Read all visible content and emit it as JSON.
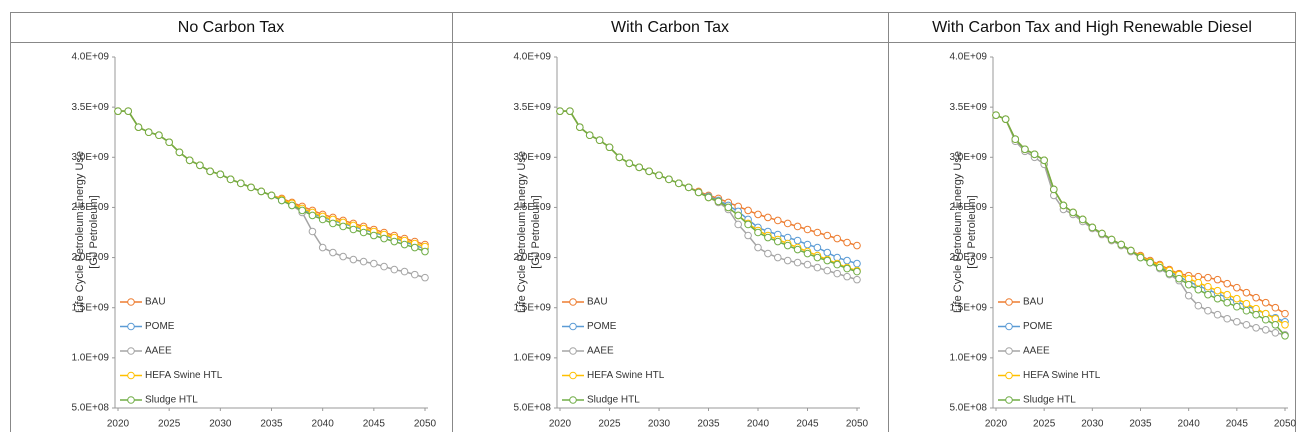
{
  "chart_data": [
    {
      "type": "line",
      "title": "No Carbon Tax",
      "ylabel": [
        "Life Cycle Petroleum Energy Use",
        "[GJ Petroleum]"
      ],
      "x": [
        2020,
        2021,
        2022,
        2023,
        2024,
        2025,
        2026,
        2027,
        2028,
        2029,
        2030,
        2031,
        2032,
        2033,
        2034,
        2035,
        2036,
        2037,
        2038,
        2039,
        2040,
        2041,
        2042,
        2043,
        2044,
        2045,
        2046,
        2047,
        2048,
        2049,
        2050
      ],
      "xlim": [
        2020,
        2050
      ],
      "xticks": [
        2020,
        2025,
        2030,
        2035,
        2040,
        2045,
        2050
      ],
      "ylim": [
        500000000.0,
        4000000000.0
      ],
      "yticks": [
        {
          "value": 500000000.0,
          "label": "5.0E+08"
        },
        {
          "value": 1000000000.0,
          "label": "1.0E+09"
        },
        {
          "value": 1500000000.0,
          "label": "1.5E+09"
        },
        {
          "value": 2000000000.0,
          "label": "2.0E+09"
        },
        {
          "value": 2500000000.0,
          "label": "2.5E+09"
        },
        {
          "value": 3000000000.0,
          "label": "3.0E+09"
        },
        {
          "value": 3500000000.0,
          "label": "3.5E+09"
        },
        {
          "value": 4000000000.0,
          "label": "4.0E+09"
        }
      ],
      "series": [
        {
          "name": "BAU",
          "color": "#ed7d31",
          "values": [
            3460000000.0,
            3460000000.0,
            3300000000.0,
            3250000000.0,
            3220000000.0,
            3150000000.0,
            3050000000.0,
            2970000000.0,
            2920000000.0,
            2860000000.0,
            2830000000.0,
            2780000000.0,
            2740000000.0,
            2700000000.0,
            2660000000.0,
            2620000000.0,
            2590000000.0,
            2550000000.0,
            2510000000.0,
            2470000000.0,
            2430000000.0,
            2400000000.0,
            2370000000.0,
            2340000000.0,
            2310000000.0,
            2280000000.0,
            2250000000.0,
            2220000000.0,
            2190000000.0,
            2160000000.0,
            2130000000.0
          ]
        },
        {
          "name": "POME",
          "color": "#5b9bd5",
          "values": [
            3460000000.0,
            3460000000.0,
            3300000000.0,
            3250000000.0,
            3220000000.0,
            3150000000.0,
            3050000000.0,
            2970000000.0,
            2920000000.0,
            2860000000.0,
            2830000000.0,
            2780000000.0,
            2740000000.0,
            2700000000.0,
            2660000000.0,
            2620000000.0,
            2570000000.0,
            2530000000.0,
            2480000000.0,
            2440000000.0,
            2400000000.0,
            2370000000.0,
            2340000000.0,
            2310000000.0,
            2280000000.0,
            2250000000.0,
            2220000000.0,
            2190000000.0,
            2160000000.0,
            2120000000.0,
            2090000000.0
          ]
        },
        {
          "name": "AAEE",
          "color": "#a5a5a5",
          "values": [
            3460000000.0,
            3460000000.0,
            3300000000.0,
            3250000000.0,
            3220000000.0,
            3150000000.0,
            3050000000.0,
            2970000000.0,
            2920000000.0,
            2860000000.0,
            2830000000.0,
            2780000000.0,
            2740000000.0,
            2700000000.0,
            2660000000.0,
            2620000000.0,
            2570000000.0,
            2520000000.0,
            2450000000.0,
            2260000000.0,
            2100000000.0,
            2050000000.0,
            2010000000.0,
            1980000000.0,
            1960000000.0,
            1940000000.0,
            1910000000.0,
            1880000000.0,
            1860000000.0,
            1830000000.0,
            1800000000.0
          ]
        },
        {
          "name": "HEFA Swine HTL",
          "color": "#ffc000",
          "values": [
            3460000000.0,
            3460000000.0,
            3300000000.0,
            3250000000.0,
            3220000000.0,
            3150000000.0,
            3050000000.0,
            2970000000.0,
            2920000000.0,
            2860000000.0,
            2830000000.0,
            2780000000.0,
            2740000000.0,
            2700000000.0,
            2660000000.0,
            2620000000.0,
            2580000000.0,
            2540000000.0,
            2490000000.0,
            2450000000.0,
            2410000000.0,
            2380000000.0,
            2350000000.0,
            2320000000.0,
            2290000000.0,
            2260000000.0,
            2230000000.0,
            2200000000.0,
            2170000000.0,
            2140000000.0,
            2110000000.0
          ]
        },
        {
          "name": "Sludge HTL",
          "color": "#70ad47",
          "values": [
            3460000000.0,
            3460000000.0,
            3300000000.0,
            3250000000.0,
            3220000000.0,
            3150000000.0,
            3050000000.0,
            2970000000.0,
            2920000000.0,
            2860000000.0,
            2830000000.0,
            2780000000.0,
            2740000000.0,
            2700000000.0,
            2660000000.0,
            2620000000.0,
            2570000000.0,
            2520000000.0,
            2470000000.0,
            2420000000.0,
            2380000000.0,
            2340000000.0,
            2310000000.0,
            2280000000.0,
            2250000000.0,
            2220000000.0,
            2190000000.0,
            2160000000.0,
            2130000000.0,
            2100000000.0,
            2060000000.0
          ]
        }
      ]
    },
    {
      "type": "line",
      "title": "With Carbon Tax",
      "ylabel": [
        "Life Cycle Petroleum Energy Use",
        "[GJ Petroleum]"
      ],
      "x": [
        2020,
        2021,
        2022,
        2023,
        2024,
        2025,
        2026,
        2027,
        2028,
        2029,
        2030,
        2031,
        2032,
        2033,
        2034,
        2035,
        2036,
        2037,
        2038,
        2039,
        2040,
        2041,
        2042,
        2043,
        2044,
        2045,
        2046,
        2047,
        2048,
        2049,
        2050
      ],
      "xlim": [
        2020,
        2050
      ],
      "xticks": [
        2020,
        2025,
        2030,
        2035,
        2040,
        2045,
        2050
      ],
      "ylim": [
        500000000.0,
        4000000000.0
      ],
      "yticks": [
        {
          "value": 500000000.0,
          "label": "5.0E+08"
        },
        {
          "value": 1000000000.0,
          "label": "1.0E+09"
        },
        {
          "value": 1500000000.0,
          "label": "1.5E+09"
        },
        {
          "value": 2000000000.0,
          "label": "2.0E+09"
        },
        {
          "value": 2500000000.0,
          "label": "2.5E+09"
        },
        {
          "value": 3000000000.0,
          "label": "3.0E+09"
        },
        {
          "value": 3500000000.0,
          "label": "3.5E+09"
        },
        {
          "value": 4000000000.0,
          "label": "4.0E+09"
        }
      ],
      "series": [
        {
          "name": "BAU",
          "color": "#ed7d31",
          "values": [
            3460000000.0,
            3460000000.0,
            3300000000.0,
            3220000000.0,
            3170000000.0,
            3100000000.0,
            3000000000.0,
            2940000000.0,
            2900000000.0,
            2860000000.0,
            2820000000.0,
            2780000000.0,
            2740000000.0,
            2700000000.0,
            2660000000.0,
            2620000000.0,
            2590000000.0,
            2550000000.0,
            2510000000.0,
            2470000000.0,
            2430000000.0,
            2400000000.0,
            2370000000.0,
            2340000000.0,
            2310000000.0,
            2280000000.0,
            2250000000.0,
            2220000000.0,
            2190000000.0,
            2150000000.0,
            2120000000.0
          ]
        },
        {
          "name": "POME",
          "color": "#5b9bd5",
          "values": [
            3460000000.0,
            3460000000.0,
            3300000000.0,
            3220000000.0,
            3170000000.0,
            3100000000.0,
            3000000000.0,
            2940000000.0,
            2900000000.0,
            2860000000.0,
            2820000000.0,
            2780000000.0,
            2740000000.0,
            2700000000.0,
            2650000000.0,
            2610000000.0,
            2570000000.0,
            2520000000.0,
            2460000000.0,
            2380000000.0,
            2300000000.0,
            2260000000.0,
            2230000000.0,
            2200000000.0,
            2170000000.0,
            2130000000.0,
            2100000000.0,
            2050000000.0,
            2000000000.0,
            1970000000.0,
            1940000000.0
          ]
        },
        {
          "name": "AAEE",
          "color": "#a5a5a5",
          "values": [
            3460000000.0,
            3460000000.0,
            3300000000.0,
            3220000000.0,
            3170000000.0,
            3100000000.0,
            3000000000.0,
            2940000000.0,
            2900000000.0,
            2860000000.0,
            2820000000.0,
            2780000000.0,
            2740000000.0,
            2700000000.0,
            2650000000.0,
            2600000000.0,
            2550000000.0,
            2480000000.0,
            2330000000.0,
            2220000000.0,
            2100000000.0,
            2040000000.0,
            2000000000.0,
            1970000000.0,
            1950000000.0,
            1930000000.0,
            1900000000.0,
            1870000000.0,
            1840000000.0,
            1810000000.0,
            1780000000.0
          ]
        },
        {
          "name": "HEFA Swine HTL",
          "color": "#ffc000",
          "values": [
            3460000000.0,
            3460000000.0,
            3300000000.0,
            3220000000.0,
            3170000000.0,
            3100000000.0,
            3000000000.0,
            2940000000.0,
            2900000000.0,
            2860000000.0,
            2820000000.0,
            2780000000.0,
            2740000000.0,
            2700000000.0,
            2650000000.0,
            2600000000.0,
            2560000000.0,
            2500000000.0,
            2420000000.0,
            2340000000.0,
            2270000000.0,
            2220000000.0,
            2180000000.0,
            2140000000.0,
            2100000000.0,
            2060000000.0,
            2020000000.0,
            1980000000.0,
            1940000000.0,
            1900000000.0,
            1870000000.0
          ]
        },
        {
          "name": "Sludge HTL",
          "color": "#70ad47",
          "values": [
            3460000000.0,
            3460000000.0,
            3300000000.0,
            3220000000.0,
            3170000000.0,
            3100000000.0,
            3000000000.0,
            2940000000.0,
            2900000000.0,
            2860000000.0,
            2820000000.0,
            2780000000.0,
            2740000000.0,
            2700000000.0,
            2650000000.0,
            2600000000.0,
            2560000000.0,
            2500000000.0,
            2420000000.0,
            2330000000.0,
            2250000000.0,
            2200000000.0,
            2160000000.0,
            2120000000.0,
            2080000000.0,
            2040000000.0,
            2000000000.0,
            1970000000.0,
            1930000000.0,
            1890000000.0,
            1860000000.0
          ]
        }
      ]
    },
    {
      "type": "line",
      "title": "With Carbon Tax and High Renewable Diesel",
      "ylabel": [
        "Life Cycle Petroleum Energy Use",
        "[GJ Petroleum]"
      ],
      "x": [
        2020,
        2021,
        2022,
        2023,
        2024,
        2025,
        2026,
        2027,
        2028,
        2029,
        2030,
        2031,
        2032,
        2033,
        2034,
        2035,
        2036,
        2037,
        2038,
        2039,
        2040,
        2041,
        2042,
        2043,
        2044,
        2045,
        2046,
        2047,
        2048,
        2049,
        2050
      ],
      "xlim": [
        2020,
        2050
      ],
      "xticks": [
        2020,
        2025,
        2030,
        2035,
        2040,
        2045,
        2050
      ],
      "ylim": [
        500000000.0,
        4000000000.0
      ],
      "yticks": [
        {
          "value": 500000000.0,
          "label": "5.0E+08"
        },
        {
          "value": 1000000000.0,
          "label": "1.0E+09"
        },
        {
          "value": 1500000000.0,
          "label": "1.5E+09"
        },
        {
          "value": 2000000000.0,
          "label": "2.0E+09"
        },
        {
          "value": 2500000000.0,
          "label": "2.5E+09"
        },
        {
          "value": 3000000000.0,
          "label": "3.0E+09"
        },
        {
          "value": 3500000000.0,
          "label": "3.5E+09"
        },
        {
          "value": 4000000000.0,
          "label": "4.0E+09"
        }
      ],
      "series": [
        {
          "name": "BAU",
          "color": "#ed7d31",
          "values": [
            3420000000.0,
            3380000000.0,
            3180000000.0,
            3080000000.0,
            3030000000.0,
            2970000000.0,
            2680000000.0,
            2520000000.0,
            2450000000.0,
            2380000000.0,
            2300000000.0,
            2240000000.0,
            2180000000.0,
            2130000000.0,
            2070000000.0,
            2020000000.0,
            1970000000.0,
            1930000000.0,
            1880000000.0,
            1840000000.0,
            1820000000.0,
            1810000000.0,
            1800000000.0,
            1780000000.0,
            1740000000.0,
            1700000000.0,
            1650000000.0,
            1600000000.0,
            1550000000.0,
            1500000000.0,
            1440000000.0
          ]
        },
        {
          "name": "POME",
          "color": "#5b9bd5",
          "values": [
            3420000000.0,
            3380000000.0,
            3180000000.0,
            3080000000.0,
            3030000000.0,
            2970000000.0,
            2680000000.0,
            2520000000.0,
            2450000000.0,
            2380000000.0,
            2300000000.0,
            2240000000.0,
            2180000000.0,
            2130000000.0,
            2070000000.0,
            2010000000.0,
            1960000000.0,
            1910000000.0,
            1860000000.0,
            1810000000.0,
            1760000000.0,
            1720000000.0,
            1680000000.0,
            1640000000.0,
            1600000000.0,
            1560000000.0,
            1520000000.0,
            1480000000.0,
            1440000000.0,
            1400000000.0,
            1360000000.0
          ]
        },
        {
          "name": "AAEE",
          "color": "#a5a5a5",
          "values": [
            3420000000.0,
            3380000000.0,
            3160000000.0,
            3060000000.0,
            3000000000.0,
            2930000000.0,
            2620000000.0,
            2480000000.0,
            2430000000.0,
            2360000000.0,
            2290000000.0,
            2230000000.0,
            2170000000.0,
            2120000000.0,
            2060000000.0,
            2000000000.0,
            1950000000.0,
            1890000000.0,
            1830000000.0,
            1770000000.0,
            1620000000.0,
            1520000000.0,
            1470000000.0,
            1430000000.0,
            1390000000.0,
            1360000000.0,
            1330000000.0,
            1300000000.0,
            1280000000.0,
            1250000000.0,
            1230000000.0
          ]
        },
        {
          "name": "HEFA Swine HTL",
          "color": "#ffc000",
          "values": [
            3420000000.0,
            3380000000.0,
            3180000000.0,
            3080000000.0,
            3030000000.0,
            2970000000.0,
            2680000000.0,
            2520000000.0,
            2450000000.0,
            2380000000.0,
            2300000000.0,
            2240000000.0,
            2180000000.0,
            2130000000.0,
            2070000000.0,
            2010000000.0,
            1960000000.0,
            1920000000.0,
            1870000000.0,
            1830000000.0,
            1790000000.0,
            1750000000.0,
            1710000000.0,
            1670000000.0,
            1630000000.0,
            1590000000.0,
            1540000000.0,
            1490000000.0,
            1440000000.0,
            1390000000.0,
            1330000000.0
          ]
        },
        {
          "name": "Sludge HTL",
          "color": "#70ad47",
          "values": [
            3420000000.0,
            3380000000.0,
            3180000000.0,
            3080000000.0,
            3030000000.0,
            2970000000.0,
            2680000000.0,
            2520000000.0,
            2450000000.0,
            2380000000.0,
            2300000000.0,
            2240000000.0,
            2180000000.0,
            2130000000.0,
            2070000000.0,
            2000000000.0,
            1950000000.0,
            1900000000.0,
            1840000000.0,
            1790000000.0,
            1730000000.0,
            1680000000.0,
            1630000000.0,
            1590000000.0,
            1550000000.0,
            1510000000.0,
            1470000000.0,
            1430000000.0,
            1380000000.0,
            1330000000.0,
            1220000000.0
          ]
        }
      ]
    }
  ]
}
